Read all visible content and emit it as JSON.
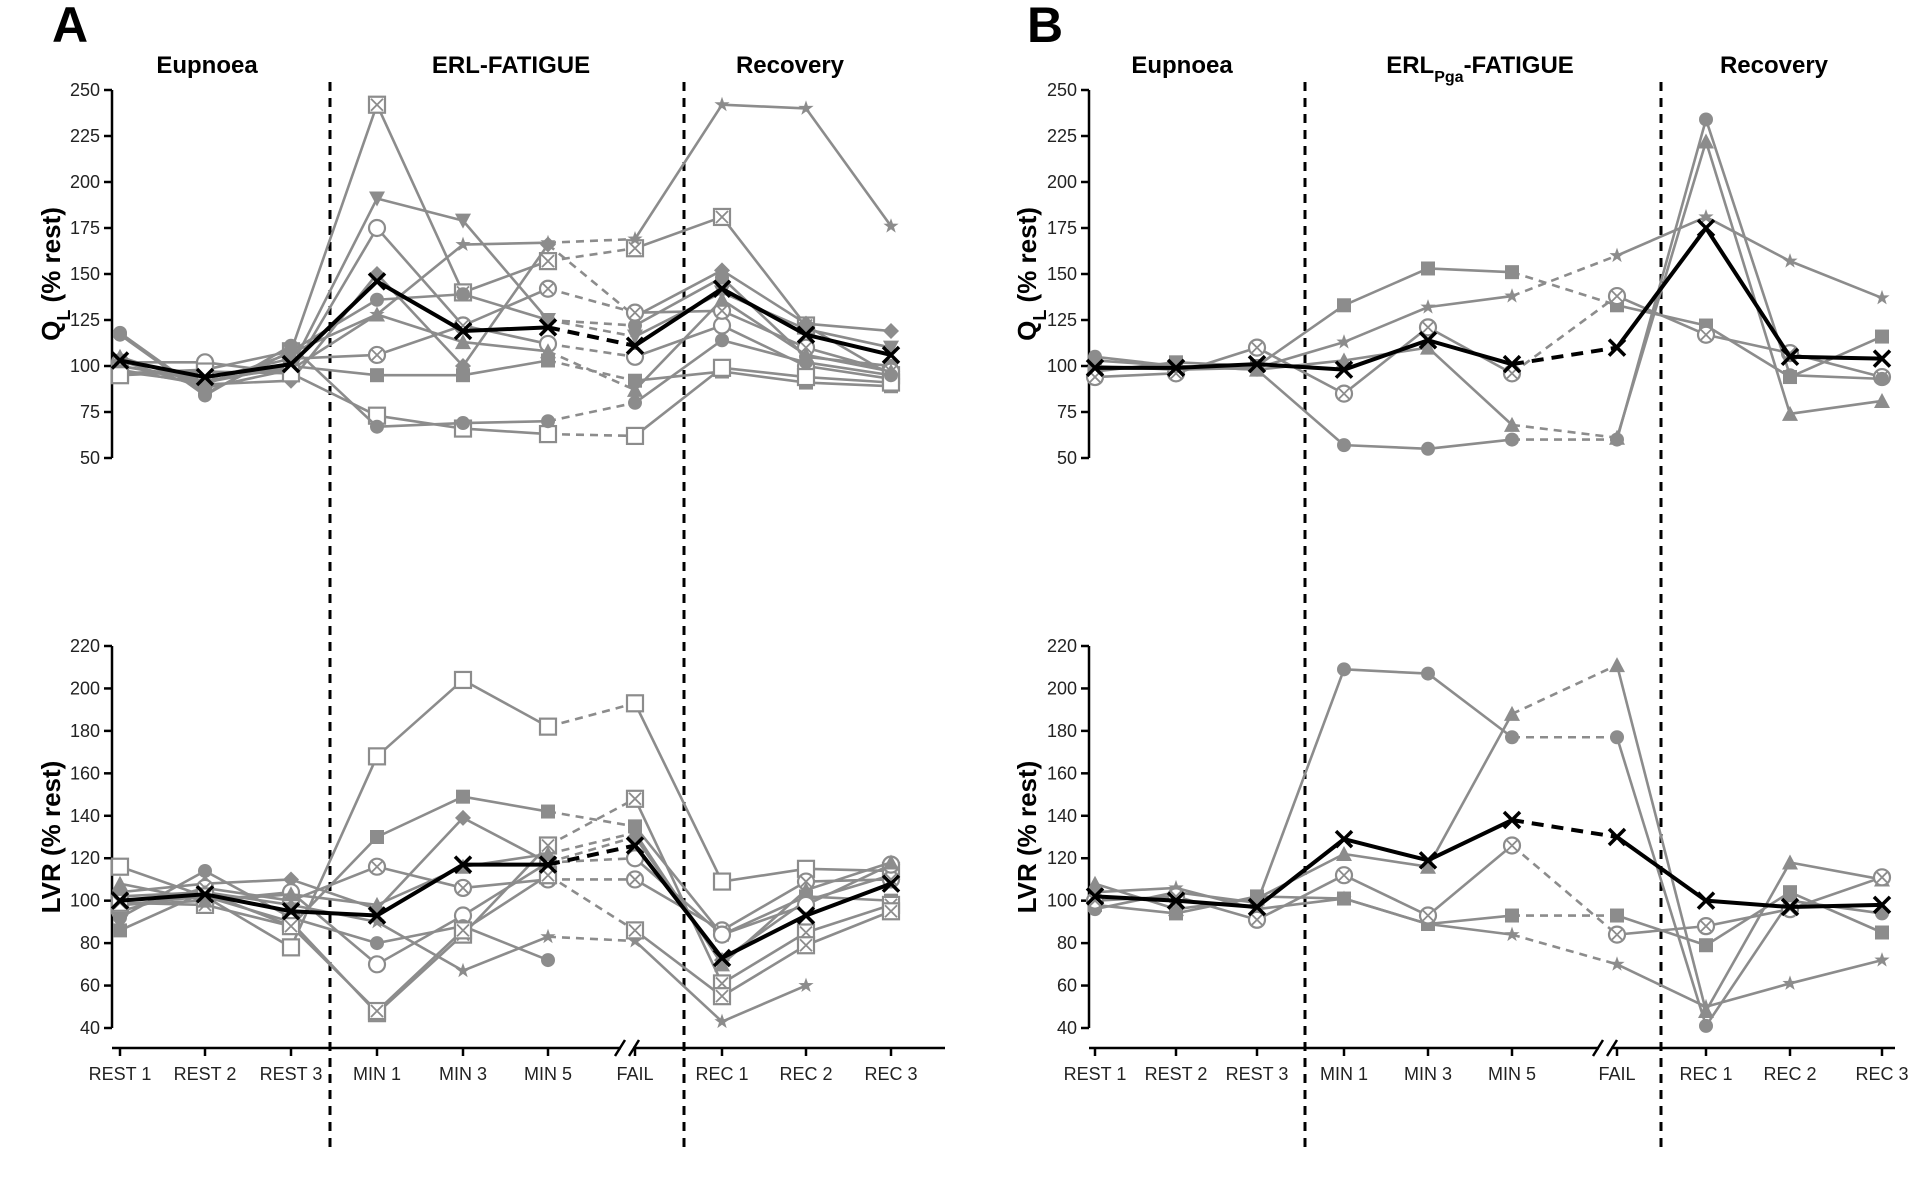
{
  "chart_data": {
    "categories": [
      "REST 1",
      "REST 2",
      "REST 3",
      "MIN 1",
      "MIN 3",
      "MIN 5",
      "FAIL",
      "REC 1",
      "REC 2",
      "REC 3"
    ],
    "panels": [
      {
        "letter": "A",
        "phases": [
          "Eupnoea",
          "ERL-FATIGUE",
          "Recovery"
        ],
        "phase_sub": "",
        "phase_tail": "",
        "top": {
          "type": "line",
          "ylabel": "Q",
          "ylabel_sub": "L",
          "ylabel_tail": " (% rest)",
          "ylim": [
            50,
            250
          ],
          "yticks": [
            50,
            75,
            100,
            125,
            150,
            175,
            200,
            225,
            250
          ],
          "mean": [
            103,
            94,
            101,
            146,
            119,
            121,
            111,
            142,
            117,
            106
          ],
          "series": [
            {
              "marker": "square-x",
              "values": [
                96,
                98,
                108,
                242,
                140,
                157,
                164,
                181,
                122,
                95
              ]
            },
            {
              "marker": "star",
              "values": [
                103,
                88,
                98,
                128,
                166,
                167,
                169,
                242,
                240,
                176
              ]
            },
            {
              "marker": "triangle-down",
              "values": [
                100,
                92,
                99,
                191,
                179,
                125,
                116,
                140,
                120,
                110
              ]
            },
            {
              "marker": "circle-open",
              "values": [
                102,
                102,
                96,
                175,
                122,
                112,
                105,
                122,
                100,
                93
              ]
            },
            {
              "marker": "diamond",
              "values": [
                98,
                90,
                92,
                150,
                100,
                166,
                127,
                152,
                123,
                119
              ]
            },
            {
              "marker": "circle",
              "values": [
                118,
                85,
                108,
                136,
                139,
                125,
                122,
                148,
                105,
                100
              ]
            },
            {
              "marker": "circle-x",
              "values": [
                100,
                93,
                104,
                106,
                122,
                142,
                129,
                130,
                110,
                97
              ]
            },
            {
              "marker": "triangle",
              "values": [
                105,
                90,
                107,
                128,
                113,
                108,
                87,
                136,
                106,
                97
              ]
            },
            {
              "marker": "square",
              "values": [
                97,
                91,
                100,
                95,
                95,
                103,
                92,
                97,
                91,
                89
              ]
            },
            {
              "marker": "square-open",
              "values": [
                95,
                97,
                96,
                73,
                66,
                63,
                62,
                99,
                94,
                91
              ]
            },
            {
              "marker": "circle",
              "values": [
                117,
                84,
                111,
                67,
                69,
                70,
                80,
                114,
                102,
                95
              ]
            }
          ]
        },
        "bottom": {
          "type": "line",
          "ylabel": "LVR (% rest)",
          "ylabel_sub": "",
          "ylabel_tail": "",
          "ylim": [
            40,
            220
          ],
          "yticks": [
            40,
            60,
            80,
            100,
            120,
            140,
            160,
            180,
            200,
            220
          ],
          "mean": [
            100,
            103,
            95,
            93,
            117,
            117,
            126,
            73,
            93,
            108
          ],
          "series": [
            {
              "marker": "square-open",
              "values": [
                116,
                102,
                78,
                168,
                204,
                182,
                193,
                109,
                115,
                114
              ]
            },
            {
              "marker": "square",
              "values": [
                86,
                104,
                88,
                130,
                149,
                142,
                135,
                84,
                102,
                100
              ]
            },
            {
              "marker": "diamond",
              "values": [
                104,
                108,
                110,
                96,
                139,
                118,
                130,
                72,
                100,
                112
              ]
            },
            {
              "marker": "circle-x",
              "values": [
                95,
                106,
                100,
                116,
                106,
                110,
                110,
                86,
                109,
                110
              ]
            },
            {
              "marker": "circle-open",
              "values": [
                98,
                100,
                104,
                70,
                93,
                118,
                120,
                84,
                98,
                117
              ]
            },
            {
              "marker": "circle",
              "values": [
                92,
                114,
                92,
                80,
                88,
                72,
                null,
                null,
                null,
                null
              ]
            },
            {
              "marker": "star",
              "values": [
                102,
                104,
                98,
                90,
                67,
                83,
                81,
                43,
                60,
                null
              ]
            },
            {
              "marker": "square-x",
              "values": [
                98,
                102,
                90,
                47,
                84,
                126,
                148,
                61,
                85,
                98
              ]
            },
            {
              "marker": "square-x",
              "values": [
                99,
                98,
                88,
                48,
                86,
                112,
                86,
                55,
                79,
                95
              ]
            },
            {
              "marker": "triangle",
              "values": [
                108,
                100,
                103,
                98,
                116,
                122,
                132,
                70,
                105,
                118
              ]
            }
          ]
        }
      },
      {
        "letter": "B",
        "phases": [
          "Eupnoea",
          "ERL",
          "Recovery"
        ],
        "phase_sub": "Pga",
        "phase_tail": "-FATIGUE",
        "top": {
          "type": "line",
          "ylabel": "Q",
          "ylabel_sub": "L",
          "ylabel_tail": " (% rest)",
          "ylim": [
            50,
            250
          ],
          "yticks": [
            50,
            75,
            100,
            125,
            150,
            175,
            200,
            225,
            250
          ],
          "mean": [
            99,
            99,
            101,
            98,
            114,
            101,
            110,
            175,
            105,
            104
          ],
          "series": [
            {
              "marker": "square",
              "values": [
                97,
                102,
                100,
                133,
                153,
                151,
                133,
                122,
                94,
                116
              ]
            },
            {
              "marker": "star",
              "values": [
                100,
                98,
                99,
                113,
                132,
                138,
                160,
                181,
                157,
                137
              ]
            },
            {
              "marker": "triangle",
              "values": [
                103,
                100,
                98,
                103,
                110,
                68,
                61,
                222,
                74,
                81
              ]
            },
            {
              "marker": "circle-x",
              "values": [
                94,
                96,
                110,
                85,
                121,
                96,
                138,
                117,
                107,
                94
              ]
            },
            {
              "marker": "circle",
              "values": [
                105,
                100,
                98,
                57,
                55,
                60,
                60,
                234,
                95,
                93
              ]
            }
          ]
        },
        "bottom": {
          "type": "line",
          "ylabel": "LVR (% rest)",
          "ylabel_sub": "",
          "ylabel_tail": "",
          "ylim": [
            40,
            220
          ],
          "yticks": [
            40,
            60,
            80,
            100,
            120,
            140,
            160,
            180,
            200,
            220
          ],
          "mean": [
            102,
            100,
            97,
            129,
            119,
            138,
            130,
            100,
            97,
            98
          ],
          "series": [
            {
              "marker": "circle",
              "values": [
                96,
                104,
                99,
                209,
                207,
                177,
                177,
                41,
                100,
                94
              ]
            },
            {
              "marker": "triangle",
              "values": [
                108,
                96,
                101,
                122,
                116,
                188,
                211,
                48,
                118,
                110
              ]
            },
            {
              "marker": "square",
              "values": [
                98,
                94,
                102,
                101,
                89,
                93,
                93,
                79,
                104,
                85
              ]
            },
            {
              "marker": "star",
              "values": [
                104,
                106,
                96,
                101,
                89,
                84,
                70,
                50,
                61,
                72
              ]
            },
            {
              "marker": "circle-x",
              "values": [
                100,
                102,
                91,
                112,
                93,
                126,
                84,
                88,
                96,
                111
              ]
            }
          ]
        }
      }
    ]
  }
}
